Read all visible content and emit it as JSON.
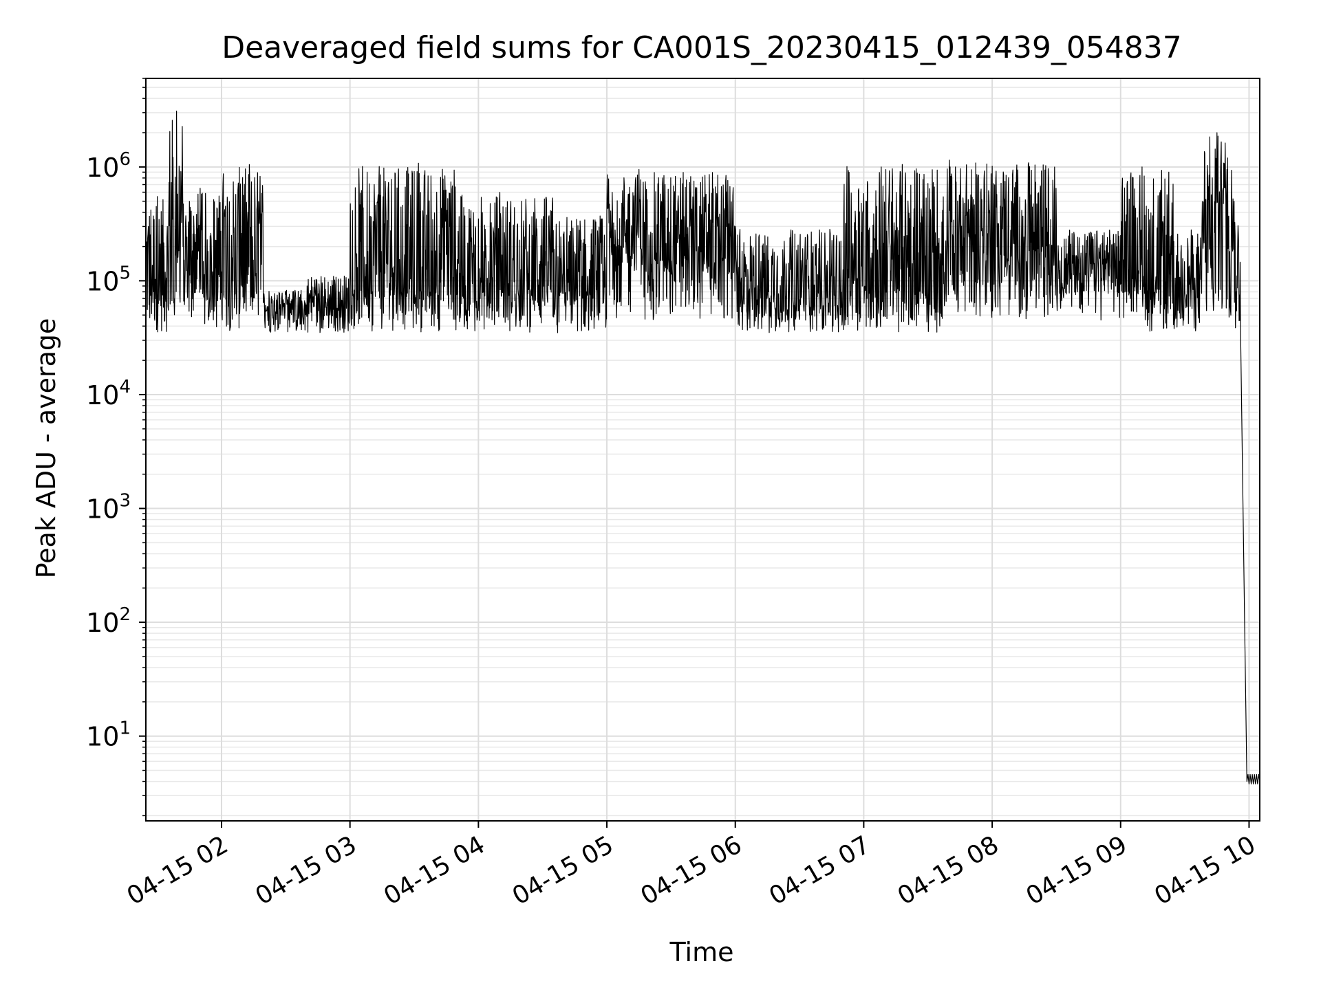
{
  "chart_data": {
    "type": "line",
    "title": "Deaveraged field sums for CA001S_20230415_012439_054837",
    "xlabel": "Time",
    "ylabel": "Peak ADU - average",
    "x_range": [
      "04-15 01:24:39",
      "04-15 10:05:00"
    ],
    "x_ticks": [
      "04-15 02",
      "04-15 03",
      "04-15 04",
      "04-15 05",
      "04-15 06",
      "04-15 07",
      "04-15 08",
      "04-15 09",
      "04-15 10"
    ],
    "y_scale": "log",
    "ylim": [
      1.8,
      6000000
    ],
    "y_ticks": [
      {
        "value": 10,
        "base": "10",
        "exp": "1"
      },
      {
        "value": 100,
        "base": "10",
        "exp": "2"
      },
      {
        "value": 1000,
        "base": "10",
        "exp": "3"
      },
      {
        "value": 10000,
        "base": "10",
        "exp": "4"
      },
      {
        "value": 100000,
        "base": "10",
        "exp": "5"
      },
      {
        "value": 1000000,
        "base": "10",
        "exp": "6"
      }
    ],
    "grid": true,
    "series": [
      {
        "color": "#000000",
        "points": [
          {
            "t": "04-15 01:24:39",
            "v": 70000
          },
          {
            "t": "04-15 01:30",
            "v": 550000
          },
          {
            "t": "04-15 01:35",
            "v": 60000
          },
          {
            "t": "04-15 01:39",
            "v": 3100000
          },
          {
            "t": "04-15 01:42",
            "v": 200000
          },
          {
            "t": "04-15 01:50",
            "v": 650000
          },
          {
            "t": "04-15 02:00",
            "v": 120000
          },
          {
            "t": "04-15 02:13",
            "v": 1050000
          },
          {
            "t": "04-15 02:20",
            "v": 70000
          },
          {
            "t": "04-15 02:40",
            "v": 90000
          },
          {
            "t": "04-15 03:00",
            "v": 120000
          },
          {
            "t": "04-15 03:32",
            "v": 1080000
          },
          {
            "t": "04-15 03:50",
            "v": 80000
          },
          {
            "t": "04-15 04:10",
            "v": 600000
          },
          {
            "t": "04-15 04:37",
            "v": 35000
          },
          {
            "t": "04-15 05:00",
            "v": 400000
          },
          {
            "t": "04-15 05:15",
            "v": 950000
          },
          {
            "t": "04-15 06:00",
            "v": 300000
          },
          {
            "t": "04-15 06:50",
            "v": 45000
          },
          {
            "t": "04-15 07:40",
            "v": 1150000
          },
          {
            "t": "04-15 08:30",
            "v": 300000
          },
          {
            "t": "04-15 09:00",
            "v": 250000
          },
          {
            "t": "04-15 09:10",
            "v": 1000000
          },
          {
            "t": "04-15 09:25",
            "v": 38000
          },
          {
            "t": "04-15 09:38",
            "v": 300000
          },
          {
            "t": "04-15 09:45",
            "v": 2000000
          },
          {
            "t": "04-15 09:50",
            "v": 1200000
          },
          {
            "t": "04-15 09:53",
            "v": 500000
          },
          {
            "t": "04-15 09:56",
            "v": 40000
          },
          {
            "t": "04-15 09:58",
            "v": 80
          },
          {
            "t": "04-15 09:59",
            "v": 4
          },
          {
            "t": "04-15 10:05",
            "v": 4
          }
        ]
      }
    ]
  }
}
